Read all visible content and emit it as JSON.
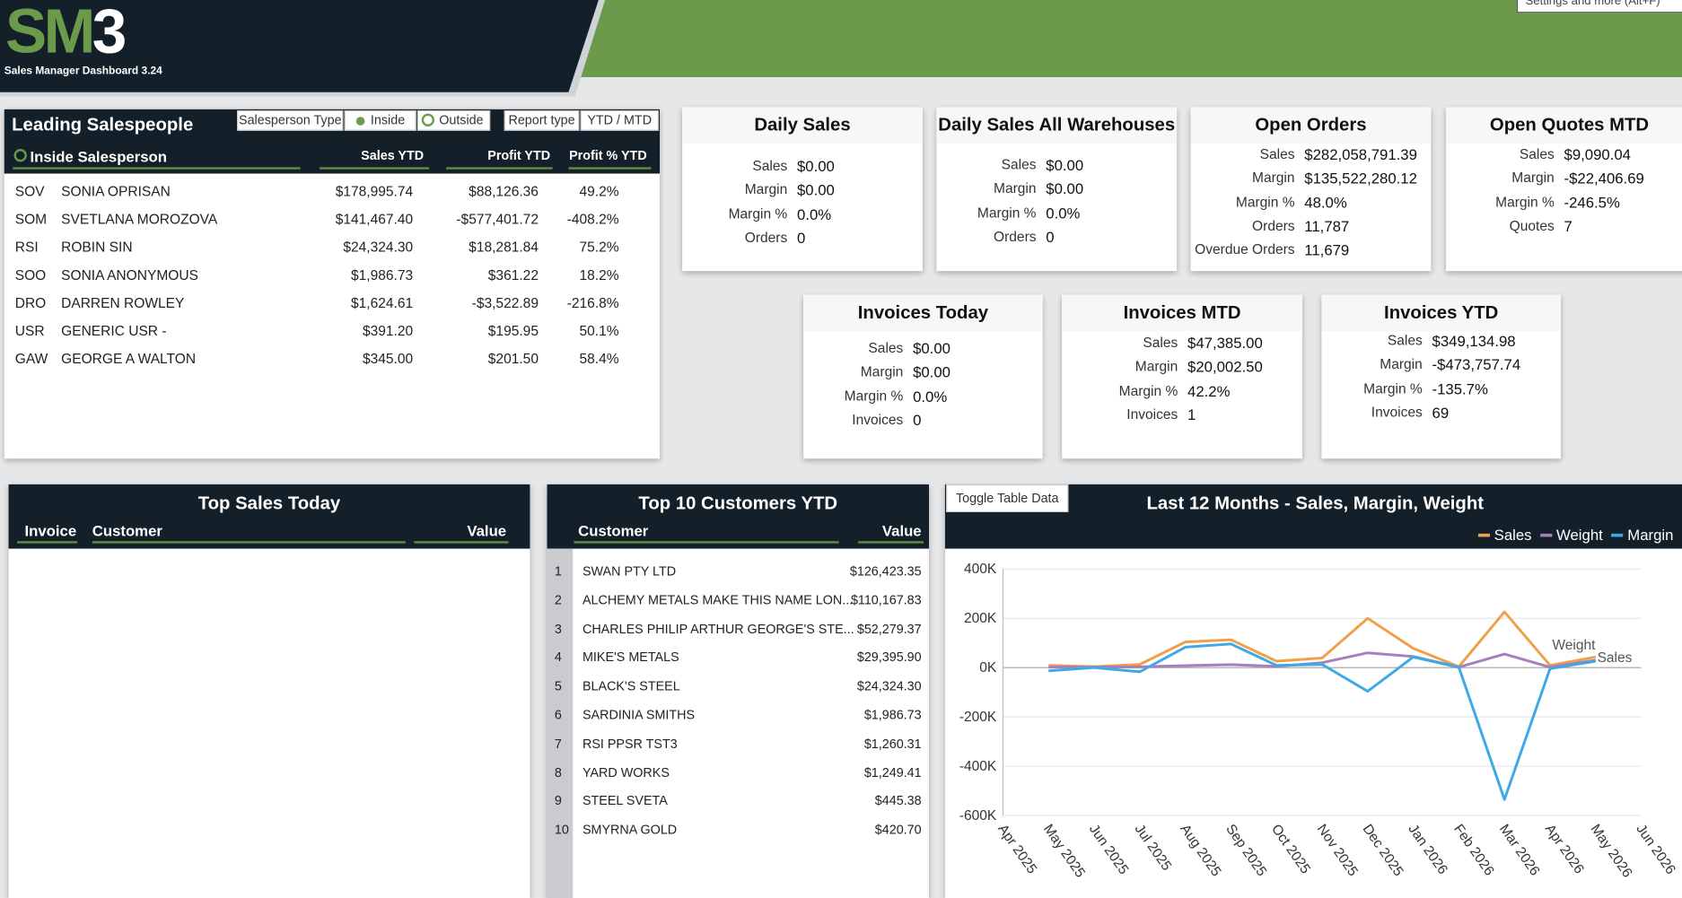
{
  "header": {
    "logo_main": "SM",
    "logo_accent": "3",
    "subtitle": "Sales Manager Dashboard 3.24",
    "tooltip": "Settings and more (Alt+F)"
  },
  "leading_salespeople": {
    "title": "Leading Salespeople",
    "filters": {
      "type_label": "Salesperson Type",
      "inside": "Inside",
      "outside": "Outside",
      "report_label": "Report type",
      "report_value": "YTD / MTD"
    },
    "group": "Inside Salesperson",
    "columns": [
      "Sales YTD",
      "Profit YTD",
      "Profit % YTD"
    ],
    "rows": [
      [
        "SOV",
        "SONIA OPRISAN",
        "$178,995.74",
        "$88,126.36",
        "49.2%"
      ],
      [
        "SOM",
        "SVETLANA MOROZOVA",
        "$141,467.40",
        "-$577,401.72",
        "-408.2%"
      ],
      [
        "RSI",
        "ROBIN SIN",
        "$24,324.30",
        "$18,281.84",
        "75.2%"
      ],
      [
        "SOO",
        "SONIA ANONYMOUS",
        "$1,986.73",
        "$361.22",
        "18.2%"
      ],
      [
        "DRO",
        "DARREN ROWLEY",
        "$1,624.61",
        "-$3,522.89",
        "-216.8%"
      ],
      [
        "USR",
        "GENERIC USR -",
        "$391.20",
        "$195.95",
        "50.1%"
      ],
      [
        "GAW",
        "GEORGE A WALTON",
        "$345.00",
        "$201.50",
        "58.4%"
      ]
    ]
  },
  "cards": [
    {
      "title": "Daily Sales",
      "rows": [
        [
          "Sales",
          "$0.00"
        ],
        [
          "Margin",
          "$0.00"
        ],
        [
          "Margin %",
          "0.0%"
        ],
        [
          "Orders",
          "0"
        ]
      ]
    },
    {
      "title": "Daily Sales All Warehouses",
      "rows": [
        [
          "Sales",
          "$0.00"
        ],
        [
          "Margin",
          "$0.00"
        ],
        [
          "Margin %",
          "0.0%"
        ],
        [
          "Orders",
          "0"
        ]
      ]
    },
    {
      "title": "Open Orders",
      "rows": [
        [
          "Sales",
          "$282,058,791.39"
        ],
        [
          "Margin",
          "$135,522,280.12"
        ],
        [
          "Margin %",
          "48.0%"
        ],
        [
          "Orders",
          "11,787"
        ],
        [
          "Overdue Orders",
          "11,679"
        ]
      ]
    },
    {
      "title": "Open Quotes MTD",
      "rows": [
        [
          "Sales",
          "$9,090.04"
        ],
        [
          "Margin",
          "-$22,406.69"
        ],
        [
          "Margin %",
          "-246.5%"
        ],
        [
          "Quotes",
          "7"
        ]
      ]
    },
    {
      "title": "Invoices Today",
      "rows": [
        [
          "Sales",
          "$0.00"
        ],
        [
          "Margin",
          "$0.00"
        ],
        [
          "Margin %",
          "0.0%"
        ],
        [
          "Invoices",
          "0"
        ]
      ]
    },
    {
      "title": "Invoices MTD",
      "rows": [
        [
          "Sales",
          "$47,385.00"
        ],
        [
          "Margin",
          "$20,002.50"
        ],
        [
          "Margin %",
          "42.2%"
        ],
        [
          "Invoices",
          "1"
        ]
      ]
    },
    {
      "title": "Invoices YTD",
      "rows": [
        [
          "Sales",
          "$349,134.98"
        ],
        [
          "Margin",
          "-$473,757.74"
        ],
        [
          "Margin %",
          "-135.7%"
        ],
        [
          "Invoices",
          "69"
        ]
      ]
    }
  ],
  "top_sales_today": {
    "title": "Top Sales Today",
    "columns": [
      "Invoice",
      "Customer",
      "Value"
    ]
  },
  "top_customers": {
    "title": "Top 10 Customers YTD",
    "columns": [
      "Customer",
      "Value"
    ],
    "rows": [
      [
        1,
        "SWAN PTY LTD",
        "$126,423.35"
      ],
      [
        2,
        "ALCHEMY METALS MAKE THIS NAME LON...",
        "$110,167.83"
      ],
      [
        3,
        "CHARLES PHILIP ARTHUR GEORGE'S STE...",
        "$52,279.37"
      ],
      [
        4,
        "MIKE'S METALS",
        "$29,395.90"
      ],
      [
        5,
        "BLACK'S STEEL",
        "$24,324.30"
      ],
      [
        6,
        "SARDINIA SMITHS",
        "$1,986.73"
      ],
      [
        7,
        "RSI PPSR TST3",
        "$1,260.31"
      ],
      [
        8,
        "YARD WORKS",
        "$1,249.41"
      ],
      [
        9,
        "STEEL SVETA",
        "$445.38"
      ],
      [
        10,
        "SMYRNA GOLD",
        "$420.70"
      ]
    ]
  },
  "toggle_button": "Toggle Table Data",
  "chart_data": {
    "type": "line",
    "title": "Last 12 Months - Sales, Margin, Weight",
    "categories": [
      "Apr 2025",
      "May 2025",
      "Jun 2025",
      "Jul 2025",
      "Aug 2025",
      "Sep 2025",
      "Oct 2025",
      "Nov 2025",
      "Dec 2025",
      "Jan 2026",
      "Feb 2026",
      "Mar 2026",
      "Apr 2026",
      "May 2026",
      "Jun 2026"
    ],
    "series": [
      {
        "name": "Sales",
        "color": "#f0a04b",
        "values": [
          null,
          9000,
          4000,
          13000,
          104000,
          113000,
          26000,
          39000,
          200000,
          78000,
          4000,
          226000,
          9000,
          43000,
          null
        ]
      },
      {
        "name": "Weight",
        "color": "#a67fbd",
        "values": [
          null,
          2000,
          2000,
          3000,
          8000,
          12000,
          5000,
          20000,
          60000,
          45000,
          2000,
          55000,
          2000,
          30000,
          null
        ]
      },
      {
        "name": "Margin",
        "color": "#3fa9e6",
        "values": [
          null,
          -13000,
          0,
          -17000,
          83000,
          96000,
          9000,
          13000,
          -96000,
          43000,
          1000,
          -535000,
          -4000,
          26000,
          null
        ]
      }
    ],
    "ylim": [
      -600000,
      400000
    ],
    "yticks": [
      {
        "value": 400000,
        "label": "400K"
      },
      {
        "value": 200000,
        "label": "200K"
      },
      {
        "value": 0,
        "label": "0K"
      },
      {
        "value": -200000,
        "label": "-200K"
      },
      {
        "value": -400000,
        "label": "-400K"
      },
      {
        "value": -600000,
        "label": "-600K"
      }
    ],
    "grid": true,
    "legend": "top-right",
    "annotations": [
      "Weight",
      "Sales"
    ]
  }
}
